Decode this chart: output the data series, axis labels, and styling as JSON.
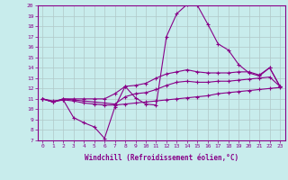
{
  "xlabel": "Windchill (Refroidissement éolien,°C)",
  "bg_color": "#c8ecec",
  "line_color": "#880088",
  "grid_color": "#b0c8c8",
  "xlim": [
    -0.5,
    23.5
  ],
  "ylim": [
    7,
    20
  ],
  "xticks": [
    0,
    1,
    2,
    3,
    4,
    5,
    6,
    7,
    8,
    9,
    10,
    11,
    12,
    13,
    14,
    15,
    16,
    17,
    18,
    19,
    20,
    21,
    22,
    23
  ],
  "yticks": [
    7,
    8,
    9,
    10,
    11,
    12,
    13,
    14,
    15,
    16,
    17,
    18,
    19,
    20
  ],
  "line1": [
    11.0,
    10.7,
    10.9,
    9.2,
    8.7,
    8.3,
    7.2,
    10.2,
    12.2,
    11.1,
    10.5,
    10.4,
    17.0,
    19.2,
    20.1,
    20.0,
    18.2,
    16.3,
    15.7,
    14.3,
    13.5,
    13.2,
    14.0,
    12.2
  ],
  "line2": [
    11.0,
    10.7,
    11.0,
    11.0,
    11.0,
    11.0,
    11.0,
    11.5,
    12.2,
    12.3,
    12.5,
    13.0,
    13.4,
    13.6,
    13.8,
    13.6,
    13.5,
    13.5,
    13.5,
    13.6,
    13.6,
    13.3,
    14.0,
    12.2
  ],
  "line3": [
    11.0,
    10.7,
    11.0,
    10.9,
    10.8,
    10.7,
    10.6,
    10.5,
    11.2,
    11.5,
    11.6,
    11.9,
    12.3,
    12.6,
    12.7,
    12.6,
    12.6,
    12.7,
    12.7,
    12.8,
    12.9,
    13.0,
    13.1,
    12.2
  ],
  "line4": [
    11.0,
    10.8,
    10.9,
    10.8,
    10.6,
    10.5,
    10.4,
    10.4,
    10.5,
    10.6,
    10.7,
    10.8,
    10.9,
    11.0,
    11.1,
    11.2,
    11.3,
    11.5,
    11.6,
    11.7,
    11.8,
    11.9,
    12.0,
    12.1
  ]
}
